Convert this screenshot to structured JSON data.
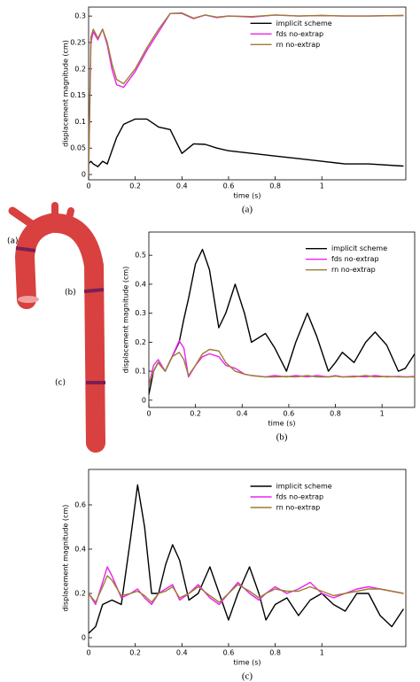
{
  "image_labels": [
    "(a)",
    "(b)",
    "(c)"
  ],
  "chart_data": [
    {
      "type": "line",
      "caption": "(a)",
      "xlabel": "time (s)",
      "ylabel": "displacement magnitude (cm)",
      "xlim": [
        0,
        1.36
      ],
      "ylim": [
        -0.01,
        0.317
      ],
      "xticks": [
        0,
        0.2,
        0.4,
        0.6,
        0.8,
        1
      ],
      "yticks": [
        0,
        0.05,
        0.1,
        0.15,
        0.2,
        0.25,
        0.3
      ],
      "legend": "upper right",
      "x": [
        0,
        0.01,
        0.02,
        0.04,
        0.06,
        0.08,
        0.1,
        0.12,
        0.15,
        0.2,
        0.25,
        0.3,
        0.35,
        0.4,
        0.45,
        0.5,
        0.55,
        0.6,
        0.7,
        0.8,
        0.9,
        1.0,
        1.1,
        1.2,
        1.35
      ],
      "series": [
        {
          "name": "implicit scheme",
          "color": "#000000",
          "values": [
            0.02,
            0.025,
            0.02,
            0.015,
            0.025,
            0.02,
            0.045,
            0.07,
            0.095,
            0.105,
            0.105,
            0.09,
            0.085,
            0.04,
            0.058,
            0.057,
            0.05,
            0.045,
            0.04,
            0.035,
            0.03,
            0.025,
            0.02,
            0.02,
            0.016
          ]
        },
        {
          "name": "fds no-extrap",
          "color": "#ee22ee",
          "values": [
            0,
            0.25,
            0.27,
            0.255,
            0.275,
            0.245,
            0.2,
            0.17,
            0.165,
            0.195,
            0.235,
            0.27,
            0.305,
            0.305,
            0.295,
            0.302,
            0.297,
            0.3,
            0.298,
            0.302,
            0.3,
            0.301,
            0.3,
            0.3,
            0.301
          ]
        },
        {
          "name": "rn no-extrap",
          "color": "#9b7d33",
          "values": [
            0,
            0.26,
            0.275,
            0.258,
            0.275,
            0.25,
            0.21,
            0.18,
            0.172,
            0.2,
            0.24,
            0.275,
            0.305,
            0.306,
            0.296,
            0.302,
            0.298,
            0.3,
            0.299,
            0.302,
            0.3,
            0.301,
            0.3,
            0.3,
            0.301
          ]
        }
      ]
    },
    {
      "type": "line",
      "caption": "(b)",
      "xlabel": "time (s)",
      "ylabel": "displacement magnitude (cm)",
      "xlim": [
        0,
        1.14
      ],
      "ylim": [
        -0.025,
        0.58
      ],
      "xticks": [
        0,
        0.2,
        0.4,
        0.6,
        0.8,
        1
      ],
      "yticks": [
        0,
        0.1,
        0.2,
        0.3,
        0.4,
        0.5
      ],
      "legend": "upper right",
      "x": [
        0,
        0.02,
        0.04,
        0.07,
        0.1,
        0.13,
        0.15,
        0.17,
        0.2,
        0.23,
        0.26,
        0.3,
        0.33,
        0.37,
        0.41,
        0.44,
        0.5,
        0.54,
        0.59,
        0.63,
        0.68,
        0.72,
        0.77,
        0.8,
        0.83,
        0.88,
        0.93,
        0.97,
        1.02,
        1.07,
        1.1,
        1.14
      ],
      "series": [
        {
          "name": "implicit scheme",
          "color": "#000000",
          "values": [
            0.02,
            0.1,
            0.13,
            0.1,
            0.15,
            0.2,
            0.28,
            0.35,
            0.47,
            0.52,
            0.45,
            0.25,
            0.3,
            0.4,
            0.3,
            0.2,
            0.23,
            0.18,
            0.1,
            0.2,
            0.3,
            0.22,
            0.1,
            0.13,
            0.165,
            0.13,
            0.2,
            0.235,
            0.19,
            0.1,
            0.11,
            0.16
          ]
        },
        {
          "name": "fds no-extrap",
          "color": "#ee22ee",
          "values": [
            0.05,
            0.12,
            0.14,
            0.1,
            0.15,
            0.205,
            0.18,
            0.08,
            0.12,
            0.15,
            0.16,
            0.15,
            0.12,
            0.11,
            0.09,
            0.085,
            0.08,
            0.085,
            0.08,
            0.085,
            0.08,
            0.085,
            0.08,
            0.085,
            0.08,
            0.083,
            0.08,
            0.085,
            0.08,
            0.082,
            0.08,
            0.082
          ]
        },
        {
          "name": "rn no-extrap",
          "color": "#9b7d33",
          "values": [
            0.05,
            0.1,
            0.13,
            0.1,
            0.15,
            0.165,
            0.14,
            0.085,
            0.12,
            0.16,
            0.175,
            0.17,
            0.13,
            0.1,
            0.09,
            0.085,
            0.08,
            0.08,
            0.082,
            0.08,
            0.085,
            0.08,
            0.08,
            0.083,
            0.08,
            0.08,
            0.085,
            0.08,
            0.082,
            0.08,
            0.08,
            0.08
          ]
        }
      ]
    },
    {
      "type": "line",
      "caption": "(c)",
      "xlabel": "time (s)",
      "ylabel": "displacement magnitude (cm)",
      "xlim": [
        0,
        1.36
      ],
      "ylim": [
        -0.04,
        0.76
      ],
      "xticks": [
        0,
        0.2,
        0.4,
        0.6,
        0.8,
        1
      ],
      "yticks": [
        0,
        0.2,
        0.4,
        0.6
      ],
      "legend": "upper right",
      "x": [
        0,
        0.03,
        0.06,
        0.08,
        0.1,
        0.14,
        0.18,
        0.21,
        0.24,
        0.27,
        0.3,
        0.33,
        0.36,
        0.39,
        0.43,
        0.47,
        0.52,
        0.56,
        0.6,
        0.64,
        0.69,
        0.73,
        0.76,
        0.8,
        0.85,
        0.9,
        0.95,
        1.0,
        1.05,
        1.1,
        1.15,
        1.2,
        1.25,
        1.3,
        1.35
      ],
      "series": [
        {
          "name": "implicit scheme",
          "color": "#000000",
          "values": [
            0.02,
            0.05,
            0.15,
            0.16,
            0.17,
            0.15,
            0.45,
            0.69,
            0.5,
            0.2,
            0.2,
            0.33,
            0.42,
            0.35,
            0.17,
            0.2,
            0.32,
            0.2,
            0.08,
            0.2,
            0.32,
            0.2,
            0.08,
            0.15,
            0.18,
            0.1,
            0.17,
            0.2,
            0.15,
            0.12,
            0.2,
            0.2,
            0.1,
            0.05,
            0.13
          ]
        },
        {
          "name": "fds no-extrap",
          "color": "#ee22ee",
          "values": [
            0.2,
            0.15,
            0.25,
            0.32,
            0.28,
            0.18,
            0.2,
            0.22,
            0.18,
            0.15,
            0.2,
            0.22,
            0.24,
            0.17,
            0.2,
            0.24,
            0.18,
            0.15,
            0.2,
            0.25,
            0.2,
            0.17,
            0.2,
            0.23,
            0.2,
            0.22,
            0.25,
            0.2,
            0.18,
            0.2,
            0.22,
            0.23,
            0.22,
            0.21,
            0.2
          ]
        },
        {
          "name": "rn no-extrap",
          "color": "#9b7d33",
          "values": [
            0.2,
            0.16,
            0.23,
            0.28,
            0.26,
            0.19,
            0.2,
            0.21,
            0.19,
            0.16,
            0.2,
            0.21,
            0.23,
            0.18,
            0.2,
            0.23,
            0.19,
            0.16,
            0.2,
            0.24,
            0.21,
            0.18,
            0.2,
            0.22,
            0.21,
            0.21,
            0.23,
            0.21,
            0.19,
            0.2,
            0.21,
            0.22,
            0.22,
            0.21,
            0.2
          ]
        }
      ]
    }
  ]
}
